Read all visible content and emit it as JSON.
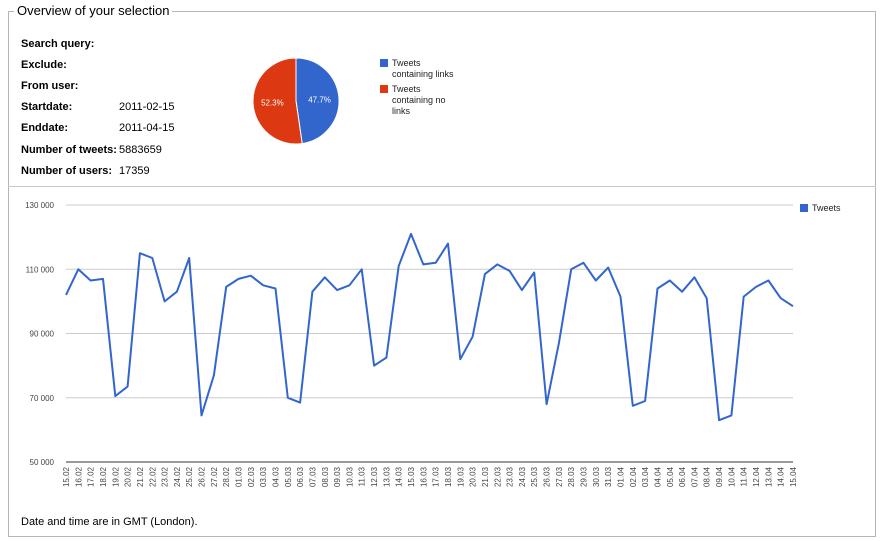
{
  "title": "Overview of your selection",
  "fields": [
    {
      "label": "Search query:",
      "value": ""
    },
    {
      "label": "Exclude:",
      "value": ""
    },
    {
      "label": "From user:",
      "value": ""
    },
    {
      "label": "Startdate:",
      "value": "2011-02-15"
    },
    {
      "label": "Enddate:",
      "value": "2011-04-15"
    },
    {
      "label": "Number of tweets:",
      "value": "5883659"
    },
    {
      "label": "Number of users:",
      "value": "17359"
    }
  ],
  "footer": "Date and time are in GMT (London).",
  "colors": {
    "blue": "#3366cc",
    "red": "#dc3912"
  },
  "chart_data": [
    {
      "type": "pie",
      "labels": [
        "Tweets containing links",
        "Tweets containing no links"
      ],
      "values": [
        47.7,
        52.3
      ],
      "slice_labels": [
        "47.7%",
        "52.3%"
      ],
      "colors": [
        "#3366cc",
        "#dc3912"
      ],
      "legend": "right"
    },
    {
      "type": "line",
      "series": [
        {
          "name": "Tweets",
          "color": "#3366cc",
          "values": [
            102000,
            110000,
            106500,
            107000,
            70500,
            73500,
            115000,
            113500,
            100000,
            103000,
            113500,
            64500,
            77000,
            104500,
            107000,
            108000,
            105000,
            104000,
            70000,
            68500,
            103000,
            107500,
            103500,
            105000,
            110000,
            80000,
            82500,
            111000,
            121000,
            111500,
            112000,
            118000,
            82000,
            89000,
            108500,
            111500,
            109500,
            103500,
            109000,
            68000,
            87000,
            110000,
            112000,
            106500,
            110500,
            101500,
            67500,
            69000,
            104000,
            106500,
            103000,
            107500,
            101000,
            63000,
            64500,
            101500,
            104500,
            106500,
            101000,
            98500
          ]
        }
      ],
      "x": [
        "15.02",
        "16.02",
        "17.02",
        "18.02",
        "19.02",
        "20.02",
        "21.02",
        "22.02",
        "23.02",
        "24.02",
        "25.02",
        "26.02",
        "27.02",
        "28.02",
        "01.03",
        "02.03",
        "03.03",
        "04.03",
        "05.03",
        "06.03",
        "07.03",
        "08.03",
        "09.03",
        "10.03",
        "11.03",
        "12.03",
        "13.03",
        "14.03",
        "15.03",
        "16.03",
        "17.03",
        "18.03",
        "19.03",
        "20.03",
        "21.03",
        "22.03",
        "23.03",
        "24.03",
        "25.03",
        "26.03",
        "27.03",
        "28.03",
        "29.03",
        "30.03",
        "31.03",
        "01.04",
        "02.04",
        "03.04",
        "04.04",
        "05.04",
        "06.04",
        "07.04",
        "08.04",
        "09.04",
        "10.04",
        "11.04",
        "12.04",
        "13.04",
        "14.04",
        "15.04"
      ],
      "ylim": [
        50000,
        130000
      ],
      "yticks": [
        50000,
        70000,
        90000,
        110000,
        130000
      ],
      "ytick_labels": [
        "50 000",
        "70 000",
        "90 000",
        "110 000",
        "130 000"
      ],
      "grid": true,
      "legend": "top-right"
    }
  ]
}
